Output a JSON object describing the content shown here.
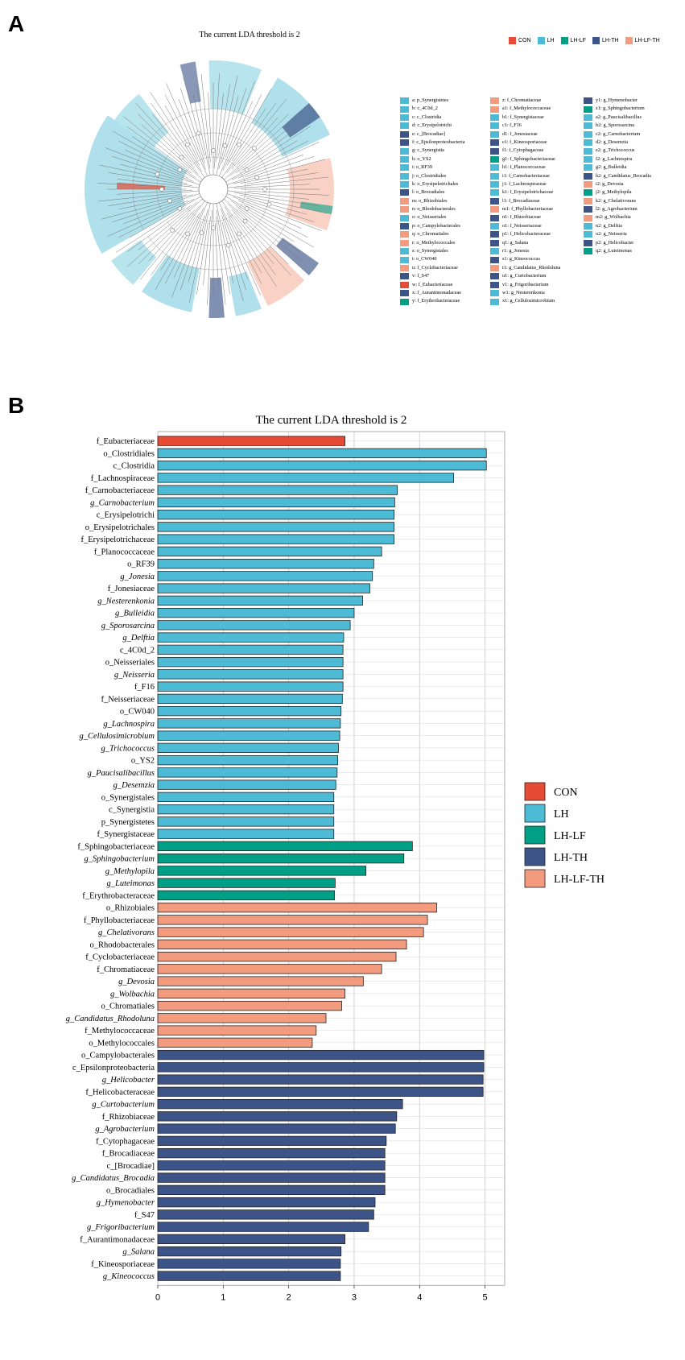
{
  "panels": {
    "a_label": "A",
    "b_label": "B"
  },
  "colors": {
    "CON": "#e64b35",
    "LH": "#4dbbd5",
    "LH-LF": "#00a087",
    "LH-TH": "#3c5488",
    "LH-LF-TH": "#f39b7f"
  },
  "panel_a": {
    "title": "The current LDA threshold is 2",
    "legend": [
      "CON",
      "LH",
      "LH-LF",
      "LH-TH",
      "LH-LF-TH"
    ],
    "key": [
      {
        "text": "a: p_Synergistetes",
        "group": "LH"
      },
      {
        "text": "b: c_4C0d_2",
        "group": "LH"
      },
      {
        "text": "c: c_Clostridia",
        "group": "LH"
      },
      {
        "text": "d: c_Erysipelotrichi",
        "group": "LH"
      },
      {
        "text": "e: c_[Brocadiae]",
        "group": "LH-TH"
      },
      {
        "text": "f: c_Epsilonproteobacteria",
        "group": "LH-TH"
      },
      {
        "text": "g: c_Synergistia",
        "group": "LH"
      },
      {
        "text": "h: o_YS2",
        "group": "LH"
      },
      {
        "text": "i: o_RF39",
        "group": "LH"
      },
      {
        "text": "j: o_Clostridiales",
        "group": "LH"
      },
      {
        "text": "k: o_Erysipelotrichales",
        "group": "LH"
      },
      {
        "text": "l: o_Brocadiales",
        "group": "LH-TH"
      },
      {
        "text": "m: o_Rhizobiales",
        "group": "LH-LF-TH"
      },
      {
        "text": "n: o_Rhodobacterales",
        "group": "LH-LF-TH"
      },
      {
        "text": "o: o_Neisseriales",
        "group": "LH"
      },
      {
        "text": "p: o_Campylobacterales",
        "group": "LH-TH"
      },
      {
        "text": "q: o_Chromatiales",
        "group": "LH-LF-TH"
      },
      {
        "text": "r: o_Methylococcales",
        "group": "LH-LF-TH"
      },
      {
        "text": "s: o_Synergistales",
        "group": "LH"
      },
      {
        "text": "t: o_CW040",
        "group": "LH"
      },
      {
        "text": "u: f_Cyclobacteriaceae",
        "group": "LH-LF-TH"
      },
      {
        "text": "v: f_S47",
        "group": "LH-TH"
      },
      {
        "text": "w: f_Eubacteriaceae",
        "group": "CON"
      },
      {
        "text": "x: f_Aurantimonadaceae",
        "group": "LH-TH"
      },
      {
        "text": "y: f_Erythrobacteraceae",
        "group": "LH-LF"
      },
      {
        "text": "z: f_Chromatiaceae",
        "group": "LH-LF-TH"
      },
      {
        "text": "a1: f_Methylococcaceae",
        "group": "LH-LF-TH"
      },
      {
        "text": "b1: f_Synergistaceae",
        "group": "LH"
      },
      {
        "text": "c1: f_F16",
        "group": "LH"
      },
      {
        "text": "d1: f_Jonesiaceae",
        "group": "LH"
      },
      {
        "text": "e1: f_Kineosporiaceae",
        "group": "LH-TH"
      },
      {
        "text": "f1: f_Cytophagaceae",
        "group": "LH-TH"
      },
      {
        "text": "g1: f_Sphingobacteriaceae",
        "group": "LH-LF"
      },
      {
        "text": "h1: f_Planococcaceae",
        "group": "LH"
      },
      {
        "text": "i1: f_Carnobacteriaceae",
        "group": "LH"
      },
      {
        "text": "j1: f_Lachnospiraceae",
        "group": "LH"
      },
      {
        "text": "k1: f_Erysipelotrichaceae",
        "group": "LH"
      },
      {
        "text": "l1: f_Brocadiaceae",
        "group": "LH-TH"
      },
      {
        "text": "m1: f_Phyllobacteriaceae",
        "group": "LH-LF-TH"
      },
      {
        "text": "n1: f_Rhizobiaceae",
        "group": "LH-TH"
      },
      {
        "text": "o1: f_Neisseriaceae",
        "group": "LH"
      },
      {
        "text": "p1: f_Helicobacteraceae",
        "group": "LH-TH"
      },
      {
        "text": "q1: g_Salana",
        "group": "LH-TH"
      },
      {
        "text": "r1: g_Jonesia",
        "group": "LH"
      },
      {
        "text": "s1: g_Kineococcus",
        "group": "LH-TH"
      },
      {
        "text": "t1: g_Candidatus_Rhodoluna",
        "group": "LH-LF-TH"
      },
      {
        "text": "u1: g_Curtobacterium",
        "group": "LH-TH"
      },
      {
        "text": "v1: g_Frigoribacterium",
        "group": "LH-TH"
      },
      {
        "text": "w1: g_Nesterenkonia",
        "group": "LH"
      },
      {
        "text": "x1: g_Cellulosimicrobium",
        "group": "LH"
      },
      {
        "text": "y1: g_Hymenobacter",
        "group": "LH-TH"
      },
      {
        "text": "z1: g_Sphingobacterium",
        "group": "LH-LF"
      },
      {
        "text": "a2: g_Paucisalibacillus",
        "group": "LH"
      },
      {
        "text": "b2: g_Sporosarcina",
        "group": "LH"
      },
      {
        "text": "c2: g_Carnobacterium",
        "group": "LH"
      },
      {
        "text": "d2: g_Desemzia",
        "group": "LH"
      },
      {
        "text": "e2: g_Trichococcus",
        "group": "LH"
      },
      {
        "text": "f2: g_Lachnospira",
        "group": "LH"
      },
      {
        "text": "g2: g_Bulleidia",
        "group": "LH"
      },
      {
        "text": "h2: g_Candidatus_Brocadia",
        "group": "LH-TH"
      },
      {
        "text": "i2: g_Devosia",
        "group": "LH-LF-TH"
      },
      {
        "text": "j2: g_Methylopila",
        "group": "LH-LF"
      },
      {
        "text": "k2: g_Chelativorans",
        "group": "LH-LF-TH"
      },
      {
        "text": "l2: g_Agrobacterium",
        "group": "LH-TH"
      },
      {
        "text": "m2: g_Wolbachia",
        "group": "LH-LF-TH"
      },
      {
        "text": "n2: g_Delftia",
        "group": "LH"
      },
      {
        "text": "o2: g_Neisseria",
        "group": "LH"
      },
      {
        "text": "p2: g_Helicobacter",
        "group": "LH-TH"
      },
      {
        "text": "q2: g_Luteimonas",
        "group": "LH-LF"
      }
    ]
  },
  "chart_data": {
    "type": "bar",
    "orientation": "horizontal",
    "title": "The current LDA threshold is 2",
    "xlim": [
      0,
      5.3
    ],
    "xticks": [
      0,
      1,
      2,
      3,
      4,
      5
    ],
    "grid": "vertical",
    "legend_position": "right",
    "legend": [
      "CON",
      "LH",
      "LH-LF",
      "LH-TH",
      "LH-LF-TH"
    ],
    "bars": [
      {
        "label": "f_Eubacteriaceae",
        "value": 2.86,
        "group": "CON",
        "italic": false
      },
      {
        "label": "o_Clostridiales",
        "value": 5.02,
        "group": "LH",
        "italic": false
      },
      {
        "label": "c_Clostridia",
        "value": 5.02,
        "group": "LH",
        "italic": false
      },
      {
        "label": "f_Lachnospiraceae",
        "value": 4.52,
        "group": "LH",
        "italic": false
      },
      {
        "label": "f_Carnobacteriaceae",
        "value": 3.66,
        "group": "LH",
        "italic": false
      },
      {
        "label": "g_Carnobacterium",
        "value": 3.62,
        "group": "LH",
        "italic": true
      },
      {
        "label": "c_Erysipelotrichi",
        "value": 3.61,
        "group": "LH",
        "italic": false
      },
      {
        "label": "o_Erysipelotrichales",
        "value": 3.61,
        "group": "LH",
        "italic": false
      },
      {
        "label": "f_Erysipelotrichaceae",
        "value": 3.61,
        "group": "LH",
        "italic": false
      },
      {
        "label": "f_Planococcaceae",
        "value": 3.42,
        "group": "LH",
        "italic": false
      },
      {
        "label": "o_RF39",
        "value": 3.3,
        "group": "LH",
        "italic": false
      },
      {
        "label": "g_Jonesia",
        "value": 3.28,
        "group": "LH",
        "italic": true
      },
      {
        "label": "f_Jonesiaceae",
        "value": 3.24,
        "group": "LH",
        "italic": false
      },
      {
        "label": "g_Nesterenkonia",
        "value": 3.13,
        "group": "LH",
        "italic": true
      },
      {
        "label": "g_Bulleidia",
        "value": 3.0,
        "group": "LH",
        "italic": true
      },
      {
        "label": "g_Sporosarcina",
        "value": 2.94,
        "group": "LH",
        "italic": true
      },
      {
        "label": "g_Delftia",
        "value": 2.84,
        "group": "LH",
        "italic": true
      },
      {
        "label": "c_4C0d_2",
        "value": 2.83,
        "group": "LH",
        "italic": false
      },
      {
        "label": "o_Neisseriales",
        "value": 2.83,
        "group": "LH",
        "italic": false
      },
      {
        "label": "g_Neisseria",
        "value": 2.83,
        "group": "LH",
        "italic": true
      },
      {
        "label": "f_F16",
        "value": 2.83,
        "group": "LH",
        "italic": false
      },
      {
        "label": "f_Neisseriaceae",
        "value": 2.82,
        "group": "LH",
        "italic": false
      },
      {
        "label": "o_CW040",
        "value": 2.8,
        "group": "LH",
        "italic": false
      },
      {
        "label": "g_Lachnospira",
        "value": 2.79,
        "group": "LH",
        "italic": true
      },
      {
        "label": "g_Cellulosimicrobium",
        "value": 2.78,
        "group": "LH",
        "italic": true
      },
      {
        "label": "g_Trichococcus",
        "value": 2.76,
        "group": "LH",
        "italic": true
      },
      {
        "label": "o_YS2",
        "value": 2.75,
        "group": "LH",
        "italic": false
      },
      {
        "label": "g_Paucisalibacillus",
        "value": 2.74,
        "group": "LH",
        "italic": true
      },
      {
        "label": "g_Desemzia",
        "value": 2.72,
        "group": "LH",
        "italic": true
      },
      {
        "label": "o_Synergistales",
        "value": 2.69,
        "group": "LH",
        "italic": false
      },
      {
        "label": "c_Synergistia",
        "value": 2.69,
        "group": "LH",
        "italic": false
      },
      {
        "label": "p_Synergistetes",
        "value": 2.69,
        "group": "LH",
        "italic": false
      },
      {
        "label": "f_Synergistaceae",
        "value": 2.69,
        "group": "LH",
        "italic": false
      },
      {
        "label": "f_Sphingobacteriaceae",
        "value": 3.89,
        "group": "LH-LF",
        "italic": false
      },
      {
        "label": "g_Sphingobacterium",
        "value": 3.76,
        "group": "LH-LF",
        "italic": true
      },
      {
        "label": "g_Methylopila",
        "value": 3.18,
        "group": "LH-LF",
        "italic": true
      },
      {
        "label": "g_Luteimonas",
        "value": 2.71,
        "group": "LH-LF",
        "italic": true
      },
      {
        "label": "f_Erythrobacteraceae",
        "value": 2.7,
        "group": "LH-LF",
        "italic": false
      },
      {
        "label": "o_Rhizobiales",
        "value": 4.26,
        "group": "LH-LF-TH",
        "italic": false
      },
      {
        "label": "f_Phyllobacteriaceae",
        "value": 4.12,
        "group": "LH-LF-TH",
        "italic": false
      },
      {
        "label": "g_Chelativorans",
        "value": 4.06,
        "group": "LH-LF-TH",
        "italic": true
      },
      {
        "label": "o_Rhodobacterales",
        "value": 3.8,
        "group": "LH-LF-TH",
        "italic": false
      },
      {
        "label": "f_Cyclobacteriaceae",
        "value": 3.64,
        "group": "LH-LF-TH",
        "italic": false
      },
      {
        "label": "f_Chromatiaceae",
        "value": 3.42,
        "group": "LH-LF-TH",
        "italic": false
      },
      {
        "label": "g_Devosia",
        "value": 3.14,
        "group": "LH-LF-TH",
        "italic": true
      },
      {
        "label": "g_Wolbachia",
        "value": 2.86,
        "group": "LH-LF-TH",
        "italic": true
      },
      {
        "label": "o_Chromatiales",
        "value": 2.81,
        "group": "LH-LF-TH",
        "italic": false
      },
      {
        "label": "g_Candidatus_Rhodoluna",
        "value": 2.57,
        "group": "LH-LF-TH",
        "italic": true
      },
      {
        "label": "f_Methylococcaceae",
        "value": 2.42,
        "group": "LH-LF-TH",
        "italic": false
      },
      {
        "label": "o_Methylococcales",
        "value": 2.36,
        "group": "LH-LF-TH",
        "italic": false
      },
      {
        "label": "o_Campylobacterales",
        "value": 4.98,
        "group": "LH-TH",
        "italic": false
      },
      {
        "label": "c_Epsilonproteobacteria",
        "value": 4.98,
        "group": "LH-TH",
        "italic": false
      },
      {
        "label": "g_Helicobacter",
        "value": 4.97,
        "group": "LH-TH",
        "italic": true
      },
      {
        "label": "f_Helicobacteraceae",
        "value": 4.97,
        "group": "LH-TH",
        "italic": false
      },
      {
        "label": "g_Curtobacterium",
        "value": 3.74,
        "group": "LH-TH",
        "italic": true
      },
      {
        "label": "f_Rhizobiaceae",
        "value": 3.65,
        "group": "LH-TH",
        "italic": false
      },
      {
        "label": "g_Agrobacterium",
        "value": 3.63,
        "group": "LH-TH",
        "italic": true
      },
      {
        "label": "f_Cytophagaceae",
        "value": 3.49,
        "group": "LH-TH",
        "italic": false
      },
      {
        "label": "f_Brocadiaceae",
        "value": 3.47,
        "group": "LH-TH",
        "italic": false
      },
      {
        "label": "c_[Brocadiae]",
        "value": 3.47,
        "group": "LH-TH",
        "italic": false
      },
      {
        "label": "g_Candidatus_Brocadia",
        "value": 3.47,
        "group": "LH-TH",
        "italic": true
      },
      {
        "label": "o_Brocadiales",
        "value": 3.47,
        "group": "LH-TH",
        "italic": false
      },
      {
        "label": "g_Hymenobacter",
        "value": 3.32,
        "group": "LH-TH",
        "italic": true
      },
      {
        "label": "f_S47",
        "value": 3.3,
        "group": "LH-TH",
        "italic": false
      },
      {
        "label": "g_Frigoribacterium",
        "value": 3.22,
        "group": "LH-TH",
        "italic": true
      },
      {
        "label": "f_Aurantimonadaceae",
        "value": 2.86,
        "group": "LH-TH",
        "italic": false
      },
      {
        "label": "g_Salana",
        "value": 2.8,
        "group": "LH-TH",
        "italic": true
      },
      {
        "label": "f_Kineosporiaceae",
        "value": 2.79,
        "group": "LH-TH",
        "italic": false
      },
      {
        "label": "g_Kineococcus",
        "value": 2.79,
        "group": "LH-TH",
        "italic": true
      }
    ]
  }
}
